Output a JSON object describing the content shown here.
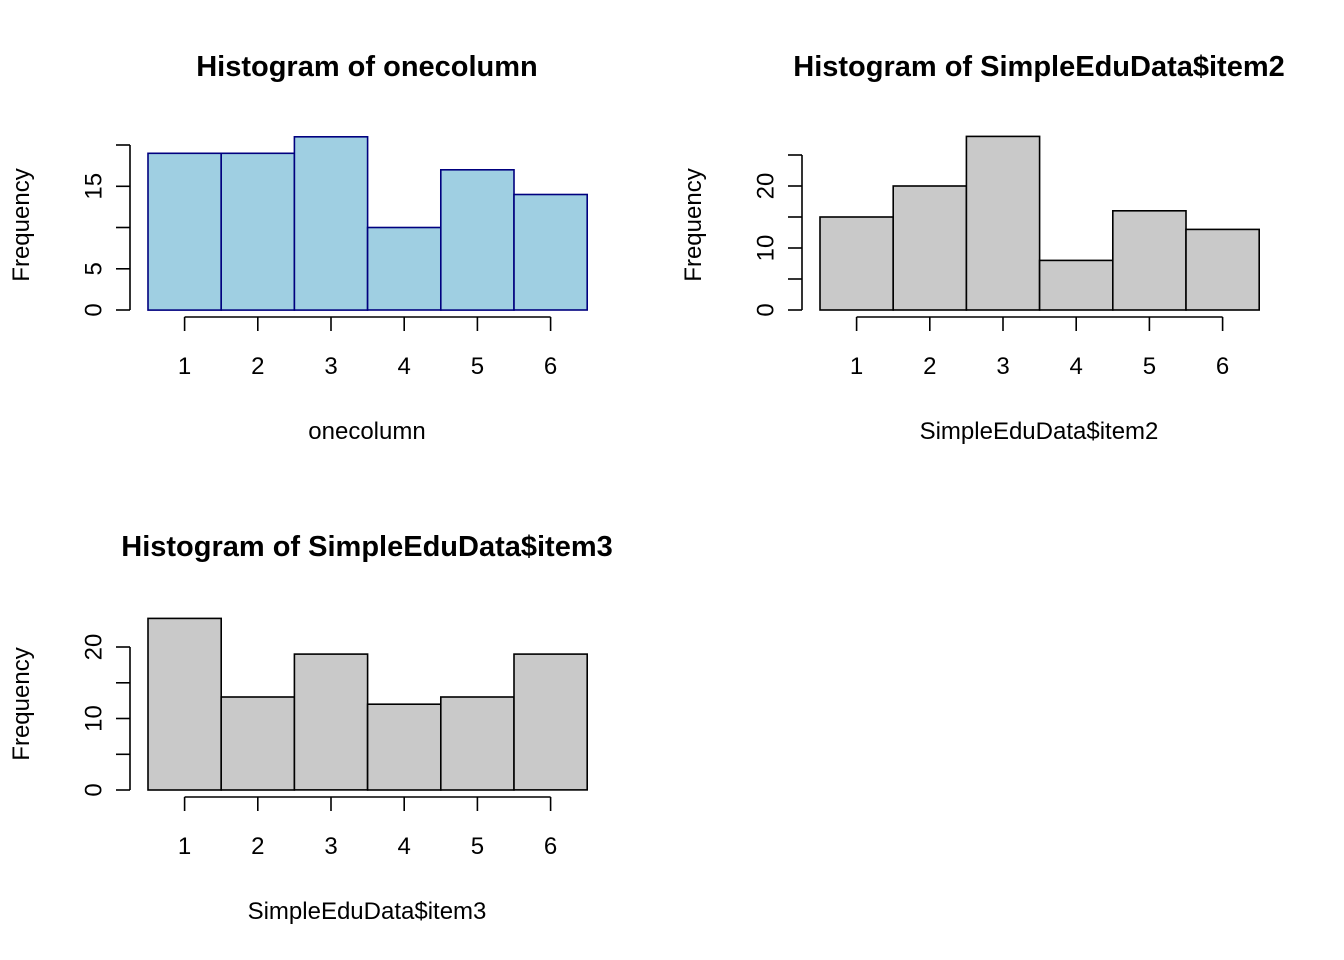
{
  "chart_data": [
    {
      "type": "bar",
      "title": "Histogram of onecolumn",
      "xlabel": "onecolumn",
      "ylabel": "Frequency",
      "categories": [
        "1",
        "2",
        "3",
        "4",
        "5",
        "6"
      ],
      "values": [
        19,
        19,
        21,
        10,
        17,
        14
      ],
      "y_tick_labels": [
        "0",
        "5",
        "15"
      ],
      "y_tick_values": [
        0,
        5,
        10,
        15,
        20
      ],
      "x_tick_labels": [
        "1",
        "2",
        "3",
        "4",
        "5",
        "6"
      ],
      "fill": "#9fcfe2",
      "stroke": "#00007f"
    },
    {
      "type": "bar",
      "title": "Histogram of SimpleEduData$item2",
      "xlabel": "SimpleEduData$item2",
      "ylabel": "Frequency",
      "categories": [
        "1",
        "2",
        "3",
        "4",
        "5",
        "6"
      ],
      "values": [
        15,
        20,
        28,
        8,
        16,
        13
      ],
      "y_tick_labels": [
        "0",
        "10",
        "20"
      ],
      "y_tick_values": [
        0,
        5,
        10,
        15,
        20,
        25
      ],
      "x_tick_labels": [
        "1",
        "2",
        "3",
        "4",
        "5",
        "6"
      ],
      "fill": "#c9c9c9",
      "stroke": "#000000"
    },
    {
      "type": "bar",
      "title": "Histogram of SimpleEduData$item3",
      "xlabel": "SimpleEduData$item3",
      "ylabel": "Frequency",
      "categories": [
        "1",
        "2",
        "3",
        "4",
        "5",
        "6"
      ],
      "values": [
        24,
        13,
        19,
        12,
        13,
        19
      ],
      "y_tick_labels": [
        "0",
        "10",
        "20"
      ],
      "y_tick_values": [
        0,
        5,
        10,
        15,
        20
      ],
      "x_tick_labels": [
        "1",
        "2",
        "3",
        "4",
        "5",
        "6"
      ],
      "fill": "#c9c9c9",
      "stroke": "#000000"
    }
  ]
}
